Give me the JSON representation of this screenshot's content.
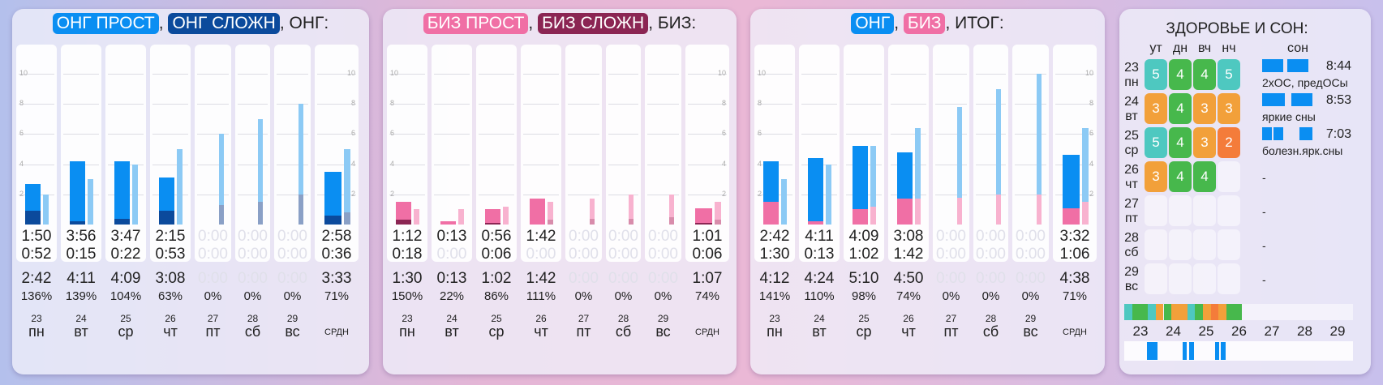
{
  "colors": {
    "ong_simple": "#0a8ef2",
    "ong_complex": "#0b4a9c",
    "ong_light": "#8ccaf5",
    "biz_simple": "#f06fa5",
    "biz_complex": "#8b2553",
    "biz_light": "#f8b2cf",
    "grey": "#9aa4b8"
  },
  "panels": [
    {
      "id": "ong",
      "title": {
        "a": "ОНГ ПРОСТ",
        "sep1": ",",
        "b": "ОНГ СЛОЖН",
        "tail": ", ОНГ:"
      },
      "line1": [
        "1:50",
        "3:56",
        "3:47",
        "2:15",
        "0:00",
        "0:00",
        "0:00",
        "2:58"
      ],
      "line2": [
        "0:52",
        "0:15",
        "0:22",
        "0:53",
        "0:00",
        "0:00",
        "0:00",
        "0:36"
      ],
      "line3": [
        "2:42",
        "4:11",
        "4:09",
        "3:08",
        "0:00",
        "0:00",
        "0:00",
        "3:33"
      ],
      "pct": [
        "136%",
        "139%",
        "104%",
        "63%",
        "0%",
        "0%",
        "0%",
        "71%"
      ]
    },
    {
      "id": "biz",
      "title": {
        "a": "БИЗ ПРОСТ",
        "sep1": ",",
        "b": "БИЗ СЛОЖН",
        "tail": ", БИЗ:"
      },
      "line1": [
        "1:12",
        "0:13",
        "0:56",
        "1:42",
        "0:00",
        "0:00",
        "0:00",
        "1:01"
      ],
      "line2": [
        "0:18",
        "0:00",
        "0:06",
        "0:00",
        "0:00",
        "0:00",
        "0:00",
        "0:06"
      ],
      "line3": [
        "1:30",
        "0:13",
        "1:02",
        "1:42",
        "0:00",
        "0:00",
        "0:00",
        "1:07"
      ],
      "pct": [
        "150%",
        "22%",
        "86%",
        "111%",
        "0%",
        "0%",
        "0%",
        "74%"
      ]
    },
    {
      "id": "total",
      "title": {
        "a": "ОНГ",
        "sep1": ",",
        "b": "БИЗ",
        "tail": ", ИТОГ:"
      },
      "line1": [
        "2:42",
        "4:11",
        "4:09",
        "3:08",
        "0:00",
        "0:00",
        "0:00",
        "3:32"
      ],
      "line2": [
        "1:30",
        "0:13",
        "1:02",
        "1:42",
        "0:00",
        "0:00",
        "0:00",
        "1:06"
      ],
      "line3": [
        "4:12",
        "4:24",
        "5:10",
        "4:50",
        "0:00",
        "0:00",
        "0:00",
        "4:38"
      ],
      "pct": [
        "141%",
        "110%",
        "98%",
        "74%",
        "0%",
        "0%",
        "0%",
        "71%"
      ]
    }
  ],
  "days": [
    "23",
    "24",
    "25",
    "26",
    "27",
    "28",
    "29"
  ],
  "weekdays": [
    "пн",
    "вт",
    "ср",
    "чт",
    "пт",
    "сб",
    "вс"
  ],
  "avg_label": "СРДН",
  "grid_ticks": [
    "10",
    "8",
    "6",
    "4",
    "2"
  ],
  "chart_data": [
    {
      "type": "bar",
      "panel": "ong",
      "categories": [
        "23 пн",
        "24 вт",
        "25 ср",
        "26 чт",
        "27 пт",
        "28 сб",
        "29 вс",
        "СРДН"
      ],
      "ylim": [
        0,
        10
      ],
      "series": [
        {
          "name": "ОНГ ПРОСТ",
          "values": [
            2.7,
            4.2,
            4.2,
            3.1,
            0,
            0,
            0,
            3.5
          ]
        },
        {
          "name": "ОНГ СЛОЖН",
          "values": [
            0.9,
            0.2,
            0.4,
            0.9,
            0,
            0,
            0,
            0.6
          ]
        }
      ],
      "target": [
        2.0,
        3.0,
        4.0,
        5.0,
        6.0,
        7.0,
        8.0,
        5.0
      ],
      "target_dark": [
        0,
        0,
        0,
        0,
        1.3,
        1.5,
        2.0,
        0.8
      ]
    },
    {
      "type": "bar",
      "panel": "biz",
      "categories": [
        "23 пн",
        "24 вт",
        "25 ср",
        "26 чт",
        "27 пт",
        "28 сб",
        "29 вс",
        "СРДН"
      ],
      "ylim": [
        0,
        10
      ],
      "series": [
        {
          "name": "БИЗ ПРОСТ",
          "values": [
            1.5,
            0.2,
            1.0,
            1.7,
            0,
            0,
            0,
            1.1
          ]
        },
        {
          "name": "БИЗ СЛОЖН",
          "values": [
            0.3,
            0,
            0.1,
            0,
            0,
            0,
            0,
            0.1
          ]
        }
      ],
      "target": [
        1.0,
        1.0,
        1.2,
        1.5,
        1.7,
        2.0,
        2.0,
        1.5
      ],
      "target_dark": [
        0,
        0,
        0,
        0.3,
        0.4,
        0.4,
        0.5,
        0.3
      ]
    },
    {
      "type": "bar",
      "panel": "total",
      "categories": [
        "23 пн",
        "24 вт",
        "25 ср",
        "26 чт",
        "27 пт",
        "28 сб",
        "29 вс",
        "СРДН"
      ],
      "ylim": [
        0,
        10
      ],
      "series": [
        {
          "name": "ОНГ",
          "values": [
            2.7,
            4.2,
            4.2,
            3.1,
            0,
            0,
            0,
            3.5
          ]
        },
        {
          "name": "БИЗ",
          "values": [
            1.5,
            0.2,
            1.0,
            1.7,
            0,
            0,
            0,
            1.1
          ]
        }
      ],
      "target": [
        3.0,
        4.0,
        5.2,
        6.4,
        7.8,
        9.0,
        10.0,
        6.4
      ],
      "target_pink": [
        0,
        0,
        1.2,
        1.7,
        1.8,
        2.0,
        2.0,
        1.5
      ]
    }
  ],
  "health": {
    "title": "ЗДОРОВЬЕ И СОН:",
    "cols": [
      "ут",
      "дн",
      "вч",
      "нч"
    ],
    "sleep_label": "сон",
    "rows": [
      {
        "day": "23",
        "wd": "пн",
        "scores": [
          "5",
          "4",
          "4",
          "5"
        ],
        "colors": [
          "#4ec8c0",
          "#47b84c",
          "#47b84c",
          "#4ec8c0"
        ],
        "sleep": "8:44",
        "note": "2хОС, предОСы"
      },
      {
        "day": "24",
        "wd": "вт",
        "scores": [
          "3",
          "4",
          "3",
          "3"
        ],
        "colors": [
          "#f2a03a",
          "#47b84c",
          "#f2a03a",
          "#f2a03a"
        ],
        "sleep": "8:53",
        "note": "яркие сны"
      },
      {
        "day": "25",
        "wd": "ср",
        "scores": [
          "5",
          "4",
          "3",
          "2"
        ],
        "colors": [
          "#4ec8c0",
          "#47b84c",
          "#f2a03a",
          "#f47c3a"
        ],
        "sleep": "7:03",
        "note": "болезн.ярк.сны"
      },
      {
        "day": "26",
        "wd": "чт",
        "scores": [
          "3",
          "4",
          "4",
          ""
        ],
        "colors": [
          "#f2a03a",
          "#47b84c",
          "#47b84c",
          ""
        ],
        "sleep": "",
        "note": "-"
      },
      {
        "day": "27",
        "wd": "пт",
        "scores": [
          "",
          "",
          "",
          ""
        ],
        "colors": [
          "",
          "",
          "",
          ""
        ],
        "sleep": "",
        "note": "-"
      },
      {
        "day": "28",
        "wd": "сб",
        "scores": [
          "",
          "",
          "",
          ""
        ],
        "colors": [
          "",
          "",
          "",
          ""
        ],
        "sleep": "",
        "note": "-"
      },
      {
        "day": "29",
        "wd": "вс",
        "scores": [
          "",
          "",
          "",
          ""
        ],
        "colors": [
          "",
          "",
          "",
          ""
        ],
        "sleep": "",
        "note": "-"
      }
    ],
    "timeline_days": [
      "23",
      "24",
      "25",
      "26",
      "27",
      "28",
      "29"
    ]
  }
}
